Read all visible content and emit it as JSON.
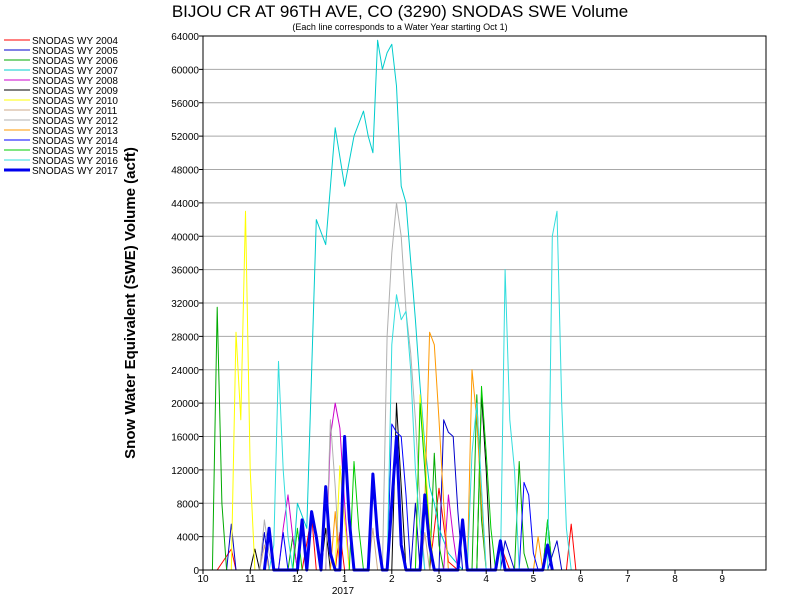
{
  "chart_data": {
    "type": "line",
    "title": "BIJOU CR AT 96TH AVE, CO (3290) SNODAS SWE Volume",
    "subtitle": "(Each line corresponds to a Water Year starting Oct 1)",
    "xlabel": "",
    "ylabel": "Snow Water Equivalent (SWE) Volume (acft)",
    "ylim": [
      0,
      64000
    ],
    "y_ticks": [
      0,
      4000,
      8000,
      12000,
      16000,
      20000,
      24000,
      28000,
      32000,
      36000,
      40000,
      44000,
      48000,
      52000,
      56000,
      60000,
      64000
    ],
    "x_ticks": [
      "10",
      "11",
      "12",
      "1",
      "2",
      "3",
      "4",
      "5",
      "6",
      "7",
      "8",
      "9"
    ],
    "x_year_label": "2017",
    "grid": true,
    "legend_position": "left",
    "series": [
      {
        "name": "SNODAS WY 2004",
        "color": "#ff0000",
        "width": 1,
        "points": [
          [
            10.3,
            0
          ],
          [
            10.6,
            2500
          ],
          [
            10.7,
            0
          ],
          [
            12.1,
            0
          ],
          [
            12.3,
            6500
          ],
          [
            12.4,
            0
          ],
          [
            12.8,
            0
          ],
          [
            12.9,
            4500
          ],
          [
            13.0,
            0
          ],
          [
            14.8,
            0
          ],
          [
            15.0,
            9800
          ],
          [
            15.2,
            1000
          ],
          [
            15.4,
            0
          ],
          [
            16.2,
            0
          ],
          [
            16.3,
            3000
          ],
          [
            16.5,
            0
          ],
          [
            17.7,
            0
          ],
          [
            17.8,
            5500
          ],
          [
            17.9,
            0
          ]
        ]
      },
      {
        "name": "SNODAS WY 2005",
        "color": "#0000cc",
        "width": 1,
        "points": [
          [
            10.5,
            0
          ],
          [
            10.6,
            5500
          ],
          [
            10.7,
            0
          ],
          [
            11.2,
            0
          ],
          [
            11.3,
            4500
          ],
          [
            11.4,
            0
          ],
          [
            14.4,
            0
          ],
          [
            14.5,
            8000
          ],
          [
            14.6,
            0
          ],
          [
            15.0,
            0
          ],
          [
            15.1,
            18000
          ],
          [
            15.2,
            16500
          ],
          [
            15.3,
            16000
          ],
          [
            15.4,
            7000
          ],
          [
            15.5,
            0
          ],
          [
            16.3,
            0
          ],
          [
            16.4,
            3500
          ],
          [
            16.6,
            0
          ],
          [
            17.3,
            0
          ],
          [
            17.5,
            3500
          ],
          [
            17.6,
            0
          ]
        ]
      },
      {
        "name": "SNODAS WY 2006",
        "color": "#00aa00",
        "width": 1,
        "points": [
          [
            10.2,
            0
          ],
          [
            10.3,
            31500
          ],
          [
            10.35,
            20000
          ],
          [
            10.4,
            8000
          ],
          [
            10.5,
            0
          ],
          [
            11.8,
            0
          ],
          [
            11.9,
            4000
          ],
          [
            12.0,
            0
          ],
          [
            14.8,
            0
          ],
          [
            14.9,
            14000
          ],
          [
            15.0,
            3000
          ],
          [
            15.1,
            0
          ],
          [
            15.7,
            0
          ],
          [
            15.8,
            21000
          ],
          [
            15.9,
            6000
          ],
          [
            16.0,
            0
          ],
          [
            16.6,
            0
          ],
          [
            16.7,
            13000
          ],
          [
            16.8,
            2000
          ],
          [
            16.9,
            0
          ],
          [
            17.2,
            0
          ],
          [
            17.3,
            6000
          ],
          [
            17.4,
            0
          ]
        ]
      },
      {
        "name": "SNODAS WY 2007",
        "color": "#00cccc",
        "width": 1,
        "points": [
          [
            11.9,
            0
          ],
          [
            12.0,
            8000
          ],
          [
            12.2,
            5000
          ],
          [
            12.4,
            42000
          ],
          [
            12.6,
            39000
          ],
          [
            12.8,
            53000
          ],
          [
            13.0,
            46000
          ],
          [
            13.2,
            52000
          ],
          [
            13.4,
            55000
          ],
          [
            13.5,
            52000
          ],
          [
            13.6,
            50000
          ],
          [
            13.7,
            63500
          ],
          [
            13.8,
            60000
          ],
          [
            13.9,
            62000
          ],
          [
            14.0,
            63000
          ],
          [
            14.1,
            58000
          ],
          [
            14.2,
            46000
          ],
          [
            14.3,
            44000
          ],
          [
            14.4,
            37000
          ],
          [
            14.5,
            30000
          ],
          [
            14.6,
            22000
          ],
          [
            14.7,
            15000
          ],
          [
            14.8,
            10000
          ],
          [
            14.9,
            8000
          ],
          [
            15.0,
            5000
          ],
          [
            15.2,
            2000
          ],
          [
            15.5,
            0
          ]
        ]
      },
      {
        "name": "SNODAS WY 2008",
        "color": "#cc00cc",
        "width": 1,
        "points": [
          [
            11.6,
            0
          ],
          [
            11.7,
            5000
          ],
          [
            11.8,
            9000
          ],
          [
            11.9,
            4000
          ],
          [
            12.0,
            0
          ],
          [
            12.6,
            0
          ],
          [
            12.7,
            16000
          ],
          [
            12.8,
            20000
          ],
          [
            12.9,
            17000
          ],
          [
            13.0,
            8000
          ],
          [
            13.1,
            0
          ],
          [
            15.1,
            0
          ],
          [
            15.2,
            9000
          ],
          [
            15.3,
            4000
          ],
          [
            15.4,
            0
          ]
        ]
      },
      {
        "name": "SNODAS WY 2009",
        "color": "#000000",
        "width": 1,
        "points": [
          [
            11.0,
            0
          ],
          [
            11.1,
            2500
          ],
          [
            11.2,
            0
          ],
          [
            12.5,
            0
          ],
          [
            12.6,
            5000
          ],
          [
            12.7,
            0
          ],
          [
            14.0,
            0
          ],
          [
            14.1,
            20000
          ],
          [
            14.2,
            10000
          ],
          [
            14.3,
            0
          ],
          [
            15.8,
            0
          ],
          [
            15.9,
            21000
          ],
          [
            16.0,
            12000
          ],
          [
            16.1,
            0
          ]
        ]
      },
      {
        "name": "SNODAS WY 2010",
        "color": "#ffff00",
        "width": 1,
        "points": [
          [
            10.6,
            0
          ],
          [
            10.7,
            28500
          ],
          [
            10.8,
            18000
          ],
          [
            10.9,
            43000
          ],
          [
            11.0,
            12000
          ],
          [
            11.1,
            0
          ],
          [
            12.8,
            0
          ],
          [
            12.9,
            12500
          ],
          [
            13.0,
            6000
          ],
          [
            13.1,
            0
          ],
          [
            14.5,
            0
          ],
          [
            14.6,
            21000
          ],
          [
            14.7,
            14000
          ],
          [
            14.8,
            5000
          ],
          [
            14.9,
            0
          ]
        ]
      },
      {
        "name": "SNODAS WY 2011",
        "color": "#ccaa88",
        "width": 1,
        "points": [
          [
            11.2,
            0
          ],
          [
            11.3,
            3000
          ],
          [
            11.4,
            0
          ],
          [
            13.5,
            0
          ],
          [
            13.6,
            5000
          ],
          [
            13.7,
            0
          ],
          [
            14.6,
            0
          ],
          [
            14.7,
            4500
          ],
          [
            14.8,
            0
          ]
        ]
      },
      {
        "name": "SNODAS WY 2012",
        "color": "#b0b0b0",
        "width": 1,
        "points": [
          [
            11.2,
            0
          ],
          [
            11.3,
            6000
          ],
          [
            11.4,
            2000
          ],
          [
            11.5,
            0
          ],
          [
            12.6,
            0
          ],
          [
            12.7,
            18000
          ],
          [
            12.8,
            10000
          ],
          [
            12.9,
            0
          ],
          [
            13.8,
            0
          ],
          [
            13.9,
            28000
          ],
          [
            14.0,
            38000
          ],
          [
            14.1,
            44000
          ],
          [
            14.2,
            40000
          ],
          [
            14.3,
            31000
          ],
          [
            14.4,
            26000
          ],
          [
            14.5,
            18000
          ],
          [
            14.6,
            8000
          ],
          [
            14.7,
            0
          ]
        ]
      },
      {
        "name": "SNODAS WY 2013",
        "color": "#ff9900",
        "width": 1,
        "points": [
          [
            12.7,
            0
          ],
          [
            12.8,
            7000
          ],
          [
            12.9,
            0
          ],
          [
            14.6,
            0
          ],
          [
            14.7,
            8000
          ],
          [
            14.8,
            28500
          ],
          [
            14.9,
            27000
          ],
          [
            15.0,
            18000
          ],
          [
            15.1,
            8000
          ],
          [
            15.2,
            0
          ],
          [
            15.6,
            0
          ],
          [
            15.7,
            24000
          ],
          [
            15.8,
            18000
          ],
          [
            15.9,
            8000
          ],
          [
            16.0,
            0
          ],
          [
            17.0,
            0
          ],
          [
            17.1,
            4000
          ],
          [
            17.2,
            0
          ]
        ]
      },
      {
        "name": "SNODAS WY 2014",
        "color": "#0000ff",
        "width": 1,
        "points": [
          [
            11.6,
            0
          ],
          [
            11.7,
            4500
          ],
          [
            11.8,
            0
          ],
          [
            13.9,
            0
          ],
          [
            14.0,
            17500
          ],
          [
            14.1,
            16500
          ],
          [
            14.2,
            16000
          ],
          [
            14.3,
            9000
          ],
          [
            14.4,
            0
          ],
          [
            16.7,
            0
          ],
          [
            16.8,
            10500
          ],
          [
            16.9,
            9000
          ],
          [
            17.0,
            2000
          ],
          [
            17.1,
            0
          ]
        ]
      },
      {
        "name": "SNODAS WY 2015",
        "color": "#00cc00",
        "width": 1,
        "points": [
          [
            11.9,
            0
          ],
          [
            12.0,
            5000
          ],
          [
            12.1,
            0
          ],
          [
            13.1,
            0
          ],
          [
            13.2,
            13000
          ],
          [
            13.3,
            5000
          ],
          [
            13.4,
            0
          ],
          [
            14.5,
            0
          ],
          [
            14.6,
            20000
          ],
          [
            14.7,
            12000
          ],
          [
            14.8,
            4000
          ],
          [
            14.9,
            0
          ],
          [
            15.8,
            0
          ],
          [
            15.9,
            22000
          ],
          [
            16.0,
            14000
          ],
          [
            16.1,
            5000
          ],
          [
            16.2,
            0
          ],
          [
            17.2,
            0
          ],
          [
            17.3,
            6000
          ],
          [
            17.4,
            0
          ]
        ]
      },
      {
        "name": "SNODAS WY 2016",
        "color": "#33dddd",
        "width": 1,
        "points": [
          [
            11.4,
            0
          ],
          [
            11.5,
            3000
          ],
          [
            11.6,
            25000
          ],
          [
            11.7,
            12000
          ],
          [
            11.8,
            4000
          ],
          [
            11.9,
            0
          ],
          [
            13.9,
            0
          ],
          [
            14.0,
            27000
          ],
          [
            14.1,
            33000
          ],
          [
            14.2,
            30000
          ],
          [
            14.3,
            31000
          ],
          [
            14.4,
            24000
          ],
          [
            14.5,
            12000
          ],
          [
            14.6,
            5000
          ],
          [
            14.7,
            0
          ],
          [
            15.6,
            0
          ],
          [
            15.7,
            14000
          ],
          [
            15.8,
            20000
          ],
          [
            15.9,
            10000
          ],
          [
            16.0,
            0
          ],
          [
            16.3,
            0
          ],
          [
            16.4,
            36000
          ],
          [
            16.5,
            18000
          ],
          [
            16.6,
            12000
          ],
          [
            16.7,
            0
          ],
          [
            17.3,
            0
          ],
          [
            17.4,
            40000
          ],
          [
            17.5,
            43000
          ],
          [
            17.6,
            20000
          ],
          [
            17.7,
            5000
          ],
          [
            17.8,
            0
          ]
        ]
      },
      {
        "name": "SNODAS WY 2017",
        "color": "#0000ee",
        "width": 3,
        "points": [
          [
            11.3,
            0
          ],
          [
            11.4,
            5000
          ],
          [
            11.5,
            0
          ],
          [
            12.0,
            0
          ],
          [
            12.1,
            6000
          ],
          [
            12.2,
            0
          ],
          [
            12.3,
            7000
          ],
          [
            12.4,
            4000
          ],
          [
            12.5,
            0
          ],
          [
            12.6,
            10000
          ],
          [
            12.7,
            2000
          ],
          [
            12.8,
            0
          ],
          [
            12.9,
            0
          ],
          [
            13.0,
            16000
          ],
          [
            13.1,
            6000
          ],
          [
            13.2,
            0
          ],
          [
            13.5,
            0
          ],
          [
            13.6,
            11500
          ],
          [
            13.7,
            4000
          ],
          [
            13.8,
            0
          ],
          [
            13.9,
            0
          ],
          [
            14.0,
            8000
          ],
          [
            14.1,
            16000
          ],
          [
            14.2,
            3000
          ],
          [
            14.3,
            0
          ],
          [
            14.6,
            0
          ],
          [
            14.7,
            9000
          ],
          [
            14.8,
            3000
          ],
          [
            14.9,
            0
          ],
          [
            15.4,
            0
          ],
          [
            15.5,
            6000
          ],
          [
            15.6,
            0
          ],
          [
            16.2,
            0
          ],
          [
            16.3,
            3500
          ],
          [
            16.4,
            0
          ],
          [
            17.2,
            0
          ],
          [
            17.3,
            3000
          ],
          [
            17.4,
            0
          ]
        ]
      }
    ]
  }
}
